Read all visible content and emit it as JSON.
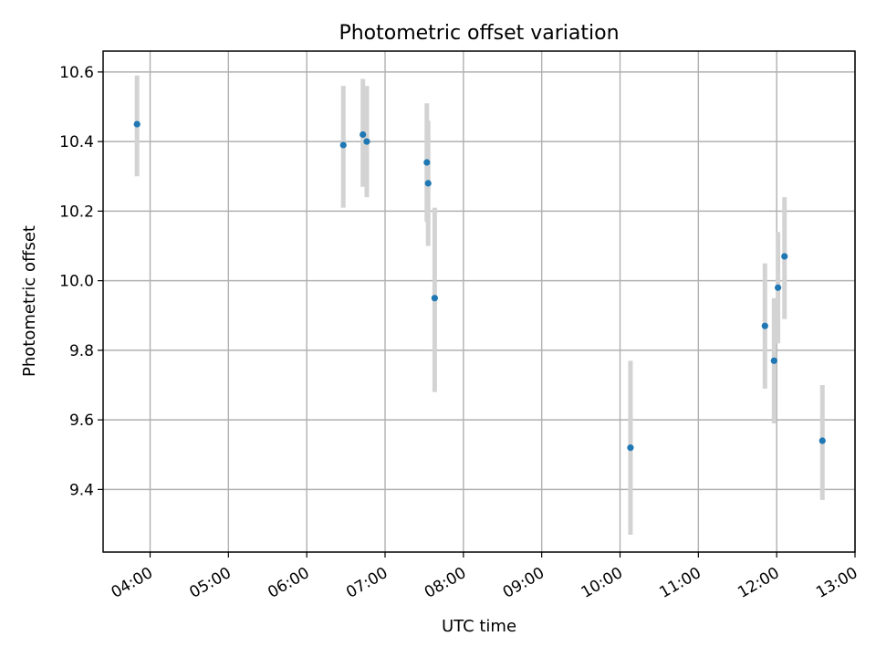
{
  "chart_data": {
    "type": "scatter",
    "title": "Photometric offset variation",
    "xlabel": "UTC time",
    "ylabel": "Photometric offset",
    "x_ticks": [
      "04:00",
      "05:00",
      "06:00",
      "07:00",
      "08:00",
      "09:00",
      "10:00",
      "11:00",
      "12:00",
      "13:00"
    ],
    "y_ticks": [
      "9.4",
      "9.6",
      "9.8",
      "10.0",
      "10.2",
      "10.4",
      "10.6"
    ],
    "xlim": [
      "03:24",
      "13:00"
    ],
    "ylim": [
      9.22,
      10.66
    ],
    "grid": true,
    "colors": {
      "points": "#1f77b4",
      "error_bars": "#d3d3d3",
      "grid": "#b0b0b0"
    },
    "points": [
      {
        "time": "03:50",
        "value": 10.45,
        "lower": 10.3,
        "upper": 10.59
      },
      {
        "time": "06:28",
        "value": 10.39,
        "lower": 10.21,
        "upper": 10.56
      },
      {
        "time": "06:43",
        "value": 10.42,
        "lower": 10.27,
        "upper": 10.58
      },
      {
        "time": "06:46",
        "value": 10.4,
        "lower": 10.24,
        "upper": 10.56
      },
      {
        "time": "07:32",
        "value": 10.34,
        "lower": 10.17,
        "upper": 10.51
      },
      {
        "time": "07:33",
        "value": 10.28,
        "lower": 10.1,
        "upper": 10.46
      },
      {
        "time": "07:38",
        "value": 9.95,
        "lower": 9.68,
        "upper": 10.21
      },
      {
        "time": "10:08",
        "value": 9.52,
        "lower": 9.27,
        "upper": 9.77
      },
      {
        "time": "11:51",
        "value": 9.87,
        "lower": 9.69,
        "upper": 10.05
      },
      {
        "time": "11:58",
        "value": 9.77,
        "lower": 9.59,
        "upper": 9.95
      },
      {
        "time": "12:01",
        "value": 9.98,
        "lower": 9.82,
        "upper": 10.14
      },
      {
        "time": "12:06",
        "value": 10.07,
        "lower": 9.89,
        "upper": 10.24
      },
      {
        "time": "12:35",
        "value": 9.54,
        "lower": 9.37,
        "upper": 9.7
      }
    ]
  }
}
